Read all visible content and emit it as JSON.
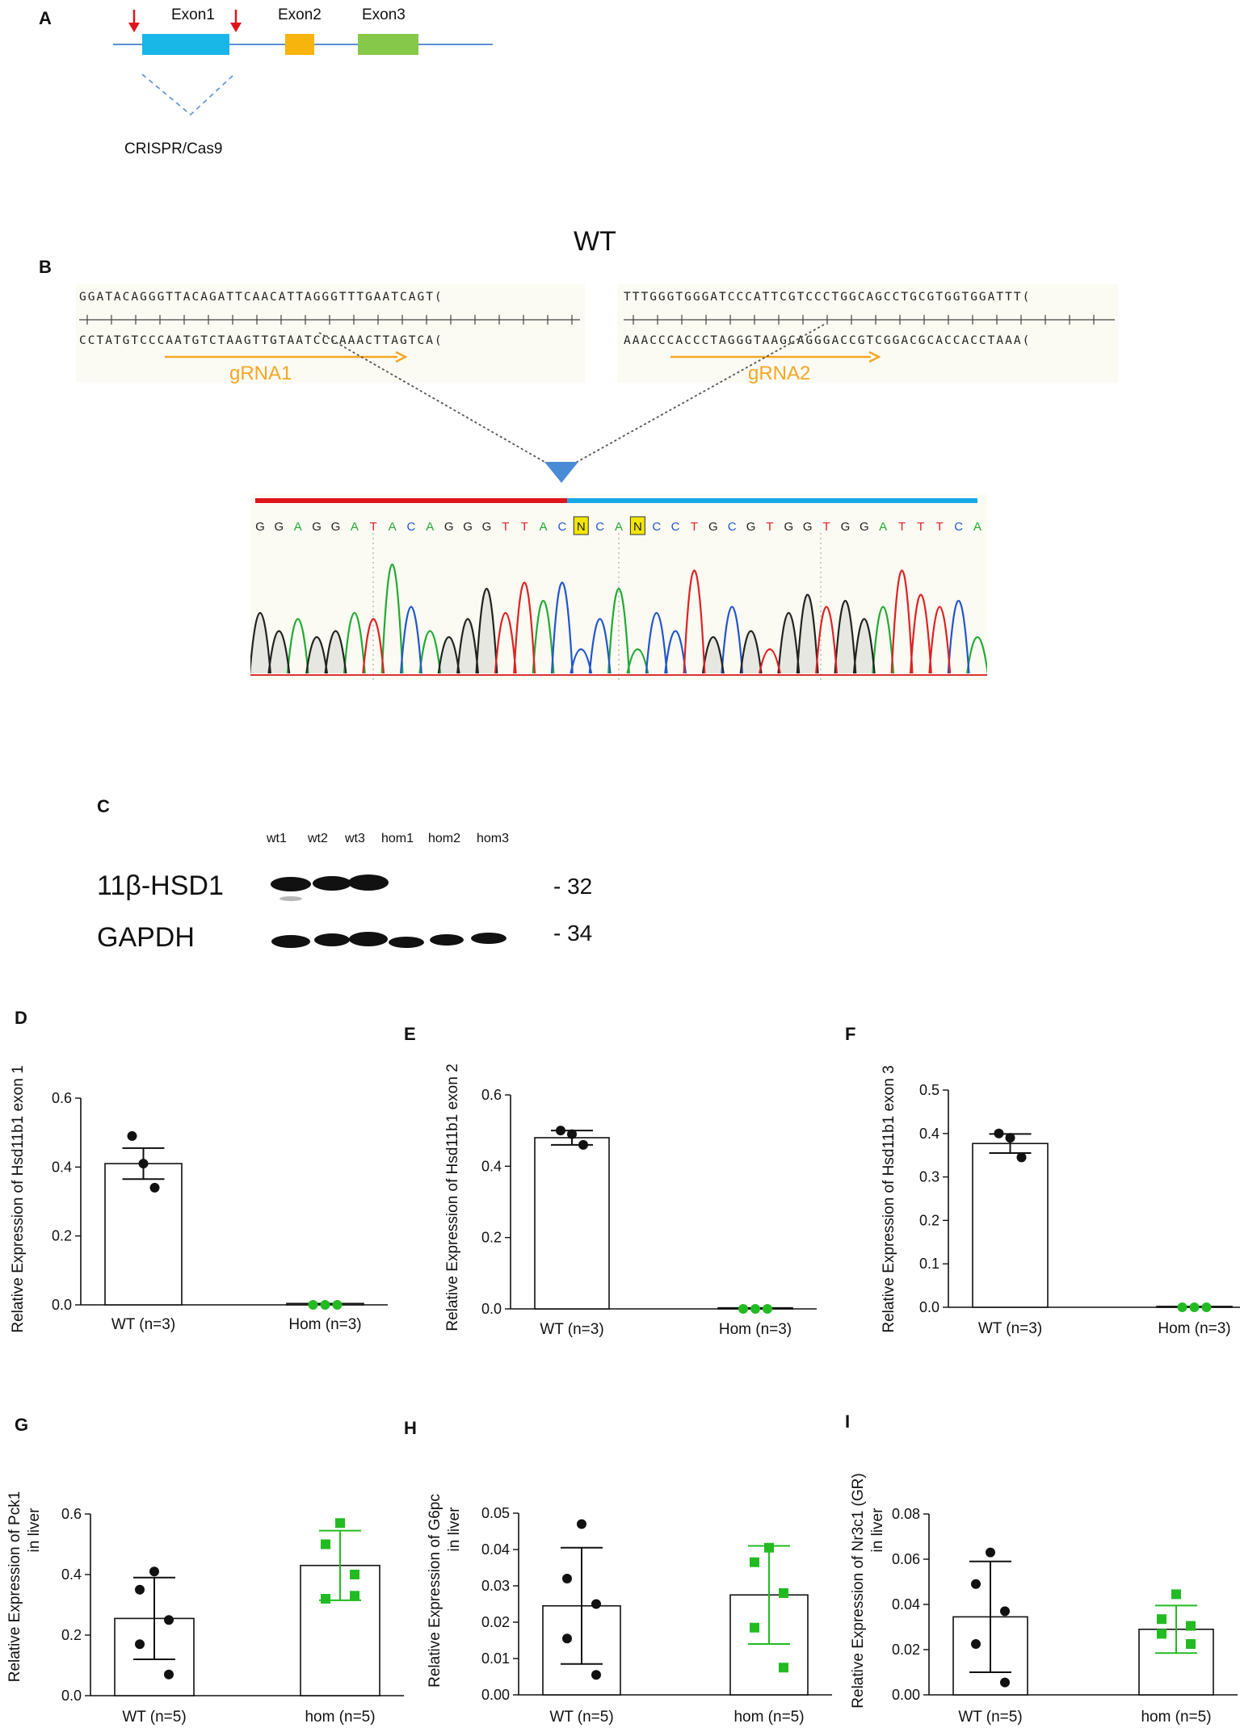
{
  "panels": {
    "A": {
      "letter": "A",
      "exons": [
        "Exon1",
        "Exon2",
        "Exon3"
      ],
      "method": "CRISPR/Cas9",
      "colors": {
        "exon1": "#19b6e8",
        "exon2": "#f6b40c",
        "exon3": "#86c84a",
        "line": "#5b8fd6",
        "arrow": "#e0151b"
      }
    },
    "B": {
      "letter": "B",
      "title": "WT",
      "seq_left_top": "GGATACAGGGTTACAGATTCAACATTAGGGTTTGAATCAGT(",
      "seq_left_bottom": "CCTATGTCCCAATGTCTAAGTTGTAATCCCAAACTTAGTCA(",
      "seq_right_top": "TTTGGGTGGGATCCCATTCGTCCCTGGCAGCCTGCGTGGTGGATTT(",
      "seq_right_bottom": "AAACCCACCCTAGGGTAAGCAGGGACCGTCGGACGCACCACCTAAA(",
      "grna1": "gRNA1",
      "grna2": "gRNA2",
      "chromatogram_bases": [
        "G",
        "G",
        "A",
        "G",
        "G",
        "A",
        "T",
        "A",
        "C",
        "A",
        "G",
        "G",
        "G",
        "T",
        "T",
        "A",
        "C",
        "N",
        "C",
        "A",
        "N",
        "C",
        "C",
        "T",
        "G",
        "C",
        "G",
        "T",
        "G",
        "G",
        "T",
        "G",
        "G",
        "A",
        "T",
        "T",
        "T",
        "C",
        "A"
      ],
      "colors": {
        "grna": "#f5a623",
        "junction_left": "#e0151b",
        "junction_right": "#19a8e8",
        "marker": "#4a8bd6",
        "N_highlight": "#f2e600"
      }
    },
    "C": {
      "letter": "C",
      "lanes": [
        "wt1",
        "wt2",
        "wt3",
        "hom1",
        "hom2",
        "hom3"
      ],
      "proteins": [
        {
          "name": "11β-HSD1",
          "mw": "- 32"
        },
        {
          "name": "GAPDH",
          "mw": "- 34"
        }
      ]
    }
  },
  "chart_data": [
    {
      "panel": "D",
      "type": "bar",
      "ylabel": "Relative Expression of Hsd11b1 exon 1",
      "categories": [
        "WT (n=3)",
        "Hom (n=3)"
      ],
      "values": [
        0.41,
        0.004
      ],
      "errors": [
        0.045,
        0.0
      ],
      "points": [
        [
          0.49,
          0.41,
          0.34
        ],
        [
          0.0,
          0.0,
          0.0
        ]
      ],
      "yticks": [
        "0.0",
        "0.2",
        "0.4",
        "0.6"
      ],
      "ylim": [
        0,
        0.6
      ],
      "colors": [
        "#111111",
        "#22bb22"
      ],
      "markers": [
        "circle",
        "circle"
      ]
    },
    {
      "panel": "E",
      "type": "bar",
      "ylabel": "Relative Expression of Hsd11b1 exon 2",
      "categories": [
        "WT (n=3)",
        "Hom (n=3)"
      ],
      "values": [
        0.48,
        0.003
      ],
      "errors": [
        0.02,
        0.0
      ],
      "points": [
        [
          0.5,
          0.49,
          0.46
        ],
        [
          0.0,
          0.0,
          0.0
        ]
      ],
      "yticks": [
        "0.0",
        "0.2",
        "0.4",
        "0.6"
      ],
      "ylim": [
        0,
        0.6
      ],
      "colors": [
        "#111111",
        "#22bb22"
      ],
      "markers": [
        "circle",
        "circle"
      ]
    },
    {
      "panel": "F",
      "type": "bar",
      "ylabel": "Relative Expression of Hsd11b1 exon 3",
      "categories": [
        "WT (n=3)",
        "Hom (n=3)"
      ],
      "values": [
        0.377,
        0.002
      ],
      "errors": [
        0.022,
        0.0
      ],
      "points": [
        [
          0.4,
          0.39,
          0.345
        ],
        [
          0.0,
          0.0,
          0.0
        ]
      ],
      "yticks": [
        "0.0",
        "0.1",
        "0.2",
        "0.3",
        "0.4",
        "0.5"
      ],
      "ylim": [
        0,
        0.5
      ],
      "colors": [
        "#111111",
        "#22bb22"
      ],
      "markers": [
        "circle",
        "circle"
      ]
    },
    {
      "panel": "G",
      "type": "bar",
      "ylabel": "Relative Expression of Pck1",
      "ylabel2": "in liver",
      "categories": [
        "WT (n=5)",
        "hom (n=5)"
      ],
      "values": [
        0.255,
        0.43
      ],
      "errors": [
        0.135,
        0.115
      ],
      "points": [
        [
          0.41,
          0.35,
          0.25,
          0.17,
          0.07
        ],
        [
          0.57,
          0.5,
          0.4,
          0.32,
          0.33
        ]
      ],
      "yticks": [
        "0.0",
        "0.2",
        "0.4",
        "0.6"
      ],
      "ylim": [
        0,
        0.6
      ],
      "colors": [
        "#111111",
        "#22bb22"
      ],
      "markers": [
        "circle",
        "square"
      ]
    },
    {
      "panel": "H",
      "type": "bar",
      "ylabel": "Relative Expression of G6pc",
      "ylabel2": "in liver",
      "categories": [
        "WT (n=5)",
        "hom (n=5)"
      ],
      "values": [
        0.0245,
        0.0275
      ],
      "errors": [
        0.016,
        0.0135
      ],
      "points": [
        [
          0.047,
          0.032,
          0.025,
          0.0155,
          0.0055
        ],
        [
          0.0405,
          0.0365,
          0.028,
          0.0185,
          0.0075
        ]
      ],
      "yticks": [
        "0.00",
        "0.01",
        "0.02",
        "0.03",
        "0.04",
        "0.05"
      ],
      "ylim": [
        0,
        0.05
      ],
      "colors": [
        "#111111",
        "#22bb22"
      ],
      "markers": [
        "circle",
        "square"
      ]
    },
    {
      "panel": "I",
      "type": "bar",
      "ylabel": "Relative Expression of Nr3c1 (GR)",
      "ylabel2": "in liver",
      "categories": [
        "WT (n=5)",
        "hom (n=5)"
      ],
      "values": [
        0.0345,
        0.029
      ],
      "errors": [
        0.0245,
        0.0105
      ],
      "points": [
        [
          0.063,
          0.049,
          0.037,
          0.0225,
          0.0055
        ],
        [
          0.0445,
          0.0335,
          0.0305,
          0.027,
          0.0225
        ]
      ],
      "yticks": [
        "0.00",
        "0.02",
        "0.04",
        "0.06",
        "0.08"
      ],
      "ylim": [
        0,
        0.08
      ],
      "colors": [
        "#111111",
        "#22bb22"
      ],
      "markers": [
        "circle",
        "square"
      ]
    }
  ]
}
